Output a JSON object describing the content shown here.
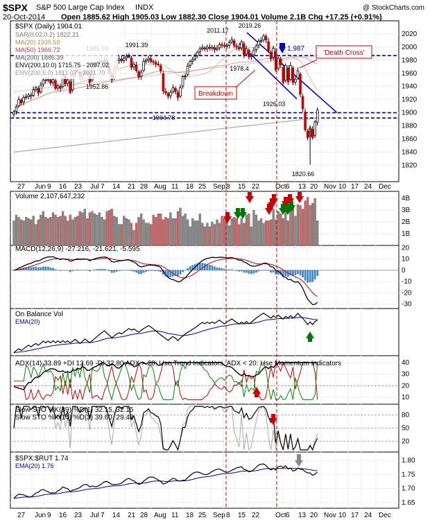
{
  "header": {
    "ticker": "$SPX",
    "name": "S&P 500 Large Cap Index",
    "exchange": "INDX",
    "date": "20-Oct-2014",
    "quote": "Open 1885.62  High 1905.03  Low 1882.30  Close 1904.01  Volume 2.1B  Chg +17.25 (+0.91%)",
    "credit": "@ StockCharts.com"
  },
  "colors": {
    "up": "#ffffff",
    "down": "#cc0000",
    "candle_outline": "#000000",
    "level_line": "#000099",
    "trend_line": "#0000cc",
    "annotation_red": "#cc0000",
    "annotation_green": "#007700",
    "volume_up": "#888888",
    "volume_down": "#cc6666",
    "macd_hist": "#4488cc",
    "ma20": "#c9a36b",
    "ma50": "#d26a6a",
    "ma200": "#aaaaaa",
    "ema": "#0000aa",
    "di_plus": "#008800",
    "di_minus": "#cc0000"
  },
  "chart_data": [
    {
      "id": "price",
      "type": "candlestick",
      "title": "$SPX (Daily) 1904.01",
      "legend": [
        "$SPX (Daily) 1904.01",
        "SAR(0.02,0.2) 1822.21",
        "MA(20) 1935.59",
        "MA(50) 1966.72",
        "MA(200) 1886.39",
        "ENV(200,10.0) 1715.75 - 2097.02",
        "ENV(200,5.0) 1811.07 - 2001.70"
      ],
      "ylim": [
        1795,
        2040
      ],
      "yticks": [
        1820,
        1840,
        1860,
        1880,
        1900,
        1920,
        1940,
        1960,
        1980,
        2000,
        2020
      ],
      "x_labels": [
        "27",
        "Jun",
        "9",
        "16",
        "23",
        "Jul",
        "7",
        "14",
        "21",
        "28",
        "Aug",
        "11",
        "18",
        "25",
        "Sep",
        "8",
        "15",
        "22",
        "Oct",
        "6",
        "13",
        "20",
        "Nov",
        "10",
        "17",
        "24",
        "Dec"
      ],
      "closes": [
        1901,
        1909,
        1920,
        1915,
        1923,
        1924,
        1927,
        1925,
        1935,
        1938,
        1930,
        1942,
        1950,
        1949,
        1951,
        1945,
        1951,
        1937,
        1941,
        1937,
        1957,
        1944,
        1950,
        1931,
        1957,
        1964,
        1963,
        1955,
        1960,
        1962,
        1960,
        1946,
        1973,
        1975,
        1976,
        1978,
        1978,
        1980,
        1974,
        1960,
        1950,
        1967,
        1979,
        1982,
        1979,
        1983,
        1986,
        1986,
        1969,
        1974,
        1964,
        1954,
        1962,
        1978,
        1980,
        1983,
        1978,
        1977,
        1974,
        1973,
        1964,
        1933,
        1930,
        1925,
        1931,
        1938,
        1932,
        1923,
        1938,
        1955,
        1956,
        1971,
        1978,
        1981,
        1986,
        1992,
        1997,
        1999,
        1997,
        2000,
        1998,
        2000,
        1996,
        1998,
        2004,
        2003,
        2001,
        2002,
        2007,
        2011,
        2002,
        2000,
        1997,
        2008,
        1988,
        1997,
        1985,
        1987,
        1995,
        2002,
        2009,
        2010,
        2017,
        2011,
        1994,
        1982,
        1998,
        1965,
        1983,
        1973,
        1946,
        1972,
        1947,
        1972,
        1946,
        1951,
        1964,
        1928,
        1906,
        1874,
        1862,
        1877,
        1862,
        1886,
        1904
      ],
      "annotations": [
        {
          "label": "2011.17",
          "value": 2011.17
        },
        {
          "label": "2019.26",
          "value": 2019.26
        },
        {
          "label": "1991.39",
          "value": 1991.39
        },
        {
          "label": "1985.59",
          "value": 1985.59
        },
        {
          "label": "1952.86",
          "value": 1952.86
        },
        {
          "label": "1904.78",
          "value": 1904.78
        },
        {
          "label": "1978.4",
          "value": 1978.4
        },
        {
          "label": "1926.03",
          "value": 1926.03
        },
        {
          "label": "1820.66",
          "value": 1820.66
        },
        {
          "label": "1,987",
          "value": 1987
        },
        {
          "label": "'Death Cross'",
          "value": 1982
        },
        {
          "label": "Breakdown",
          "value": 1941
        }
      ],
      "levels": [
        1987,
        1900,
        1892
      ]
    },
    {
      "id": "volume",
      "type": "bar",
      "title": "Volume 2,107,647,232",
      "yticks_labels": [
        "1B",
        "2B",
        "3B",
        "4B"
      ],
      "ylim": [
        0,
        4.6
      ],
      "values_billion": [
        2.1,
        2.6,
        2.4,
        2.2,
        2.1,
        2.4,
        2.3,
        2.2,
        2.5,
        1.8,
        2.2,
        2.6,
        2.9,
        2.4,
        2.3,
        2.4,
        2.8,
        2.6,
        2.4,
        2.5,
        2.9,
        2.5,
        2.1,
        2.6,
        2.2,
        2.4,
        2.5,
        2.9,
        2.8,
        3.1,
        2.3,
        2.8,
        2.9,
        2.7,
        2.6,
        2.8,
        2.4,
        2.2,
        2.9,
        3.0,
        3.1,
        2.5,
        2.4,
        1.8,
        1.8,
        2.5,
        2.3,
        2.2,
        1.9,
        1.3,
        1.9,
        2.4,
        2.7,
        2.2,
        1.9,
        1.9,
        1.8,
        2.6,
        2.4,
        2.7,
        2.7,
        2.2,
        2.4,
        2.3,
        2.8,
        2.3,
        2.3,
        2.9,
        3.2,
        2.5,
        2.7,
        2.2,
        1.6,
        2.3,
        2.1,
        2.1,
        2.7,
        1.9,
        1.6,
        1.9,
        1.6,
        2.0,
        1.8,
        2.2,
        1.9,
        2.5,
        2.3,
        2.5,
        1.7,
        2.3,
        2.4,
        2.3,
        1.8,
        2.3,
        1.9,
        2.6,
        2.7,
        1.6,
        3.0,
        2.6,
        2.1,
        2.3,
        1.9,
        2.1,
        2.1,
        2.2,
        3.1,
        2.2,
        2.9,
        2.7,
        2.3,
        3.5,
        2.1,
        3.1,
        3.2,
        2.5,
        3.5,
        3.4,
        3.1,
        3.8,
        4.1,
        3.4,
        3.6,
        4.0,
        2.1
      ]
    },
    {
      "id": "macd",
      "type": "line",
      "title": "MACD(12,26,9) -27.216, -21.621, -5.595",
      "ylim": [
        -34,
        22
      ],
      "yticks": [
        -30,
        -20,
        -10,
        0,
        10,
        20
      ]
    },
    {
      "id": "obv",
      "type": "line",
      "title": "On Balance Vol",
      "legend": [
        "EMA(20)"
      ]
    },
    {
      "id": "adx",
      "type": "line",
      "title": "ADX(14) 33.89  +DI 13.69  -DI 32.80  ADX > 20: Use Trend Indicators, ADX < 20: Use Momentum Indicators",
      "yticks": [
        10,
        20,
        30,
        40
      ],
      "ylim": [
        4,
        46
      ]
    },
    {
      "id": "sto",
      "type": "line",
      "title": "Slow STO %K(39) %D(1) 32.15, 32.15",
      "subtitle": "Slow STO %K(14) %D(3) 39.60, 29.48",
      "yticks": [
        20,
        50,
        80
      ],
      "ylim": [
        -5,
        105
      ]
    },
    {
      "id": "ratio",
      "type": "line",
      "title": "$SPX:$RUT 1.74",
      "legend": [
        "EMA(20) 1.76"
      ],
      "yticks": [
        1.65,
        1.7,
        1.75,
        1.8
      ],
      "ylim": [
        1.63,
        1.83
      ]
    }
  ]
}
